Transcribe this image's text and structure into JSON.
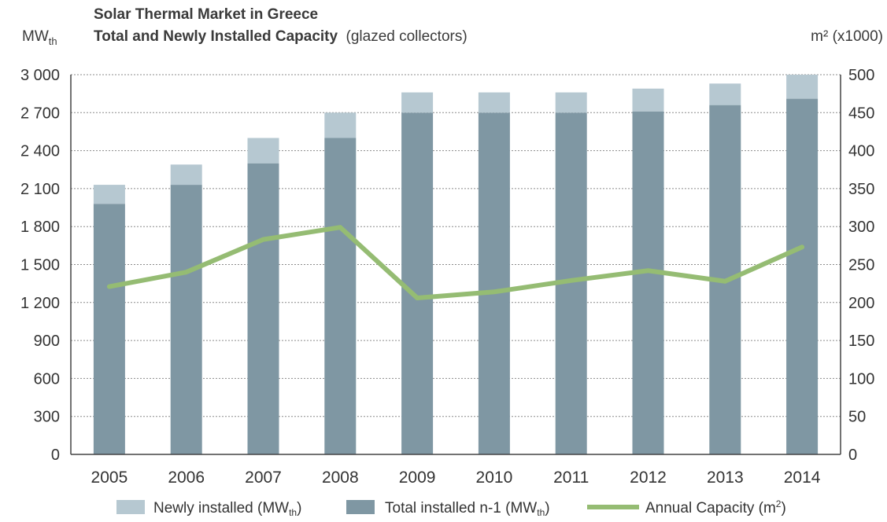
{
  "chart_data": {
    "type": "bar",
    "title": "Solar Thermal Market in Greece",
    "subtitle_bold": "Total and Newly Installed Capacity",
    "subtitle_normal": "(glazed collectors)",
    "y_left_unit": "MWth",
    "y_right_unit": "m² (x1000)",
    "categories": [
      "2005",
      "2006",
      "2007",
      "2008",
      "2009",
      "2010",
      "2011",
      "2012",
      "2013",
      "2014"
    ],
    "y_left_ticks": [
      "0",
      "300",
      "600",
      "900",
      "1 200",
      "1 500",
      "1 800",
      "2 100",
      "2 400",
      "2 700",
      "3 000"
    ],
    "y_right_ticks": [
      "0",
      "50",
      "100",
      "150",
      "200",
      "250",
      "300",
      "350",
      "400",
      "450",
      "500"
    ],
    "ylim_left": [
      0,
      3000
    ],
    "ylim_right": [
      0,
      500
    ],
    "series": [
      {
        "name": "Total installed n-1 (MWth)",
        "kind": "bar-stack-base",
        "axis": "left",
        "color": "#7f97a3",
        "values": [
          1980,
          2130,
          2300,
          2500,
          2700,
          2700,
          2700,
          2710,
          2760,
          2810
        ]
      },
      {
        "name": "Newly installed (MWth)",
        "kind": "bar-stack-top",
        "axis": "left",
        "color": "#b6c8d1",
        "values": [
          150,
          160,
          200,
          200,
          160,
          160,
          160,
          180,
          170,
          190
        ]
      },
      {
        "name": "Annual Capacity (m²)",
        "kind": "line",
        "axis": "right",
        "color": "#95bc73",
        "values": [
          221,
          240,
          283,
          299,
          206,
          214,
          229,
          242,
          228,
          273
        ]
      }
    ],
    "grid": true,
    "legend_position": "bottom",
    "legend": [
      {
        "label_main": "Newly installed (MW",
        "label_sub": "th",
        "label_end": ")",
        "color": "#b6c8d1",
        "kind": "box"
      },
      {
        "label_main": "Total installed n-1 (MW",
        "label_sub": "th",
        "label_end": ")",
        "color": "#7f97a3",
        "kind": "box"
      },
      {
        "label_main": "Annual Capacity (m",
        "label_sup": "2",
        "label_end": ")",
        "color": "#95bc73",
        "kind": "line"
      }
    ]
  }
}
